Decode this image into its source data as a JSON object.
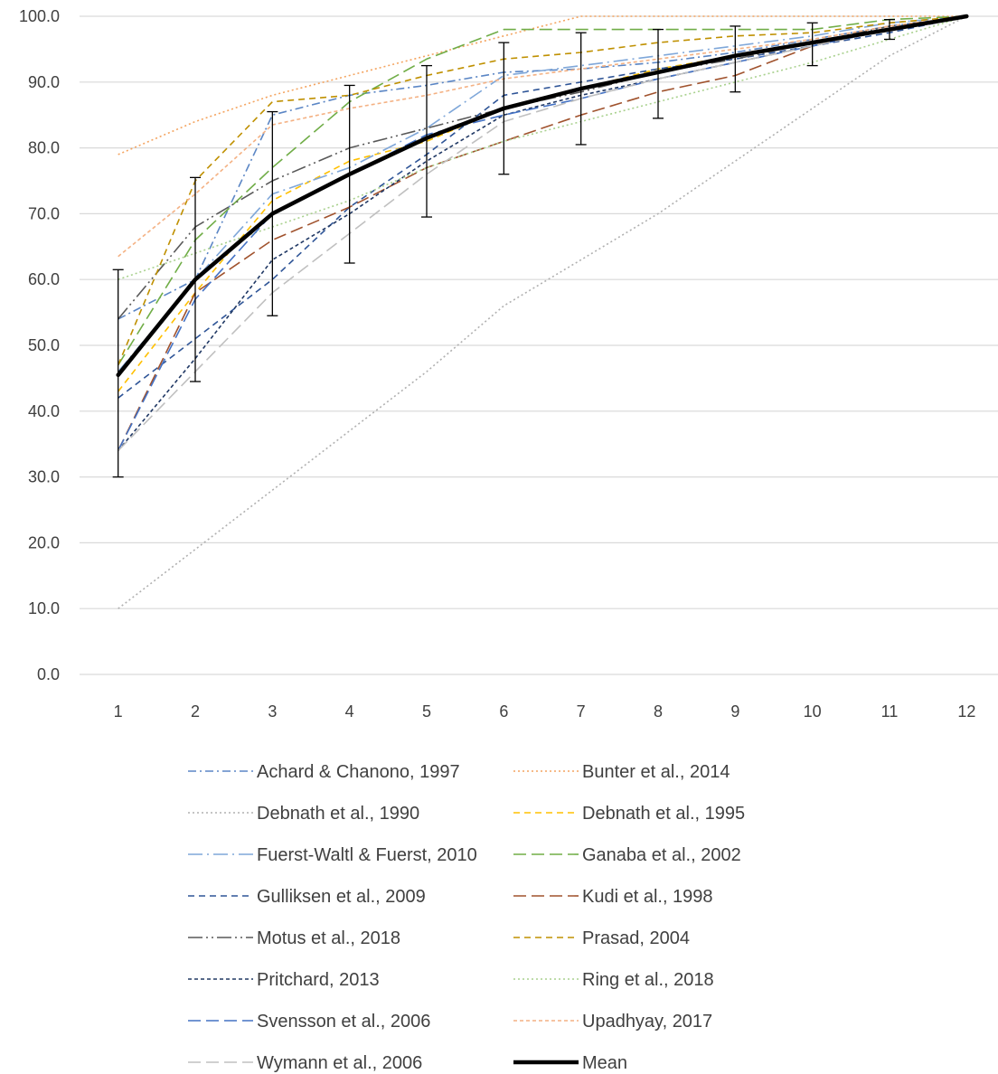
{
  "chart_data": {
    "type": "line",
    "title": "",
    "xlabel": "",
    "ylabel": "",
    "x": [
      1,
      2,
      3,
      4,
      5,
      6,
      7,
      8,
      9,
      10,
      11,
      12
    ],
    "x_tick_labels": [
      "1",
      "2",
      "3",
      "4",
      "5",
      "6",
      "7",
      "8",
      "9",
      "10",
      "11",
      "12"
    ],
    "y_tick_labels": [
      "0.0",
      "10.0",
      "20.0",
      "30.0",
      "40.0",
      "50.0",
      "60.0",
      "70.0",
      "80.0",
      "90.0",
      "100.0"
    ],
    "ylim": [
      0,
      100
    ],
    "grid": "horizontal",
    "legend_position": "bottom",
    "series": [
      {
        "name": "Achard & Chanono,  1997",
        "color": "#5b86c5",
        "dash": "dash-dot",
        "values": [
          54,
          60,
          85,
          88,
          89.5,
          91.5,
          92,
          93,
          94.5,
          96.5,
          98.5,
          100
        ]
      },
      {
        "name": "Bunter et al., 2014",
        "color": "#f4a460",
        "dash": "dot",
        "values": [
          79,
          84,
          88,
          91,
          94,
          97,
          100,
          100,
          100,
          100,
          100,
          100
        ]
      },
      {
        "name": "Debnath et al., 1990",
        "color": "#b0b0b0",
        "dash": "dot",
        "values": [
          10,
          19,
          28,
          37,
          46,
          56,
          63,
          70,
          78,
          86,
          94,
          100
        ]
      },
      {
        "name": "Debnath et al., 1995",
        "color": "#ffc000",
        "dash": "dash",
        "values": [
          43,
          58,
          72,
          78,
          81,
          86,
          89,
          92,
          94,
          96,
          98,
          100
        ]
      },
      {
        "name": "Fuerst-Waltl & Fuerst, 2010",
        "color": "#7fa7d9",
        "dash": "long-dash-dot",
        "values": [
          46,
          60,
          73,
          77,
          83,
          91,
          92.5,
          94,
          95.5,
          97,
          99,
          100
        ]
      },
      {
        "name": "Ganaba et al., 2002",
        "color": "#70ad47",
        "dash": "long-dash",
        "values": [
          47,
          66,
          77,
          87,
          93.5,
          98,
          98,
          98,
          98,
          98,
          99.5,
          100
        ]
      },
      {
        "name": "Gulliksen et al., 2009",
        "color": "#2f5597",
        "dash": "dash",
        "values": [
          42,
          51,
          60,
          71,
          79,
          88,
          90,
          92,
          93.5,
          95.5,
          97.5,
          100
        ]
      },
      {
        "name": "Kudi et al., 1998",
        "color": "#a0522d",
        "dash": "long-dash",
        "values": [
          34,
          58,
          66,
          71,
          77,
          81,
          85,
          88.5,
          91,
          95.5,
          98,
          100
        ]
      },
      {
        "name": "Motus et al., 2018",
        "color": "#595959",
        "dash": "long-dash-dot-dot",
        "values": [
          54,
          68,
          75,
          80,
          83,
          86,
          88.5,
          91.5,
          93.5,
          96,
          98.5,
          100
        ]
      },
      {
        "name": "Prasad, 2004",
        "color": "#bf9000",
        "dash": "dash",
        "values": [
          47,
          75,
          87,
          88,
          91,
          93.5,
          94.5,
          96,
          97,
          97.5,
          99,
          100
        ]
      },
      {
        "name": "Pritchard, 2013",
        "color": "#203864",
        "dash": "short-dash",
        "values": [
          34,
          48,
          63,
          70,
          78,
          85,
          88,
          90.5,
          93,
          95.5,
          98,
          100
        ]
      },
      {
        "name": "Ring et al., 2018",
        "color": "#a9d18e",
        "dash": "dot",
        "values": [
          60,
          64,
          68,
          72,
          77,
          81,
          84,
          87,
          90,
          93,
          96.5,
          100
        ]
      },
      {
        "name": "Svensson et al., 2006",
        "color": "#4472c4",
        "dash": "long-dash",
        "values": [
          34,
          57,
          70,
          76,
          82,
          85,
          87.5,
          90.5,
          93,
          95.5,
          98,
          100
        ]
      },
      {
        "name": "Upadhyay, 2017",
        "color": "#f4b183",
        "dash": "short-dash",
        "values": [
          63.5,
          73,
          83.5,
          86,
          88,
          90.5,
          92,
          93.5,
          95,
          96.5,
          98.5,
          100
        ]
      },
      {
        "name": "Wymann et al., 2006",
        "color": "#c0c0c0",
        "dash": "long-dash",
        "values": [
          34,
          46,
          58,
          67,
          76,
          84,
          87.5,
          90.5,
          93,
          95.5,
          98,
          100
        ]
      },
      {
        "name": "Mean",
        "color": "#000000",
        "dash": "solid",
        "values": [
          45.5,
          60,
          70,
          76,
          81.5,
          86,
          89,
          91.5,
          94,
          96,
          98,
          100
        ]
      }
    ],
    "error_bars": {
      "series": "Mean",
      "lower": [
        30,
        44.5,
        54.5,
        62.5,
        69.5,
        76,
        80.5,
        84.5,
        88.5,
        92.5,
        96.5,
        100
      ],
      "upper": [
        61.5,
        75.5,
        85.5,
        89.5,
        92.5,
        96,
        97.5,
        98,
        98.5,
        99,
        99.5,
        100
      ]
    }
  }
}
